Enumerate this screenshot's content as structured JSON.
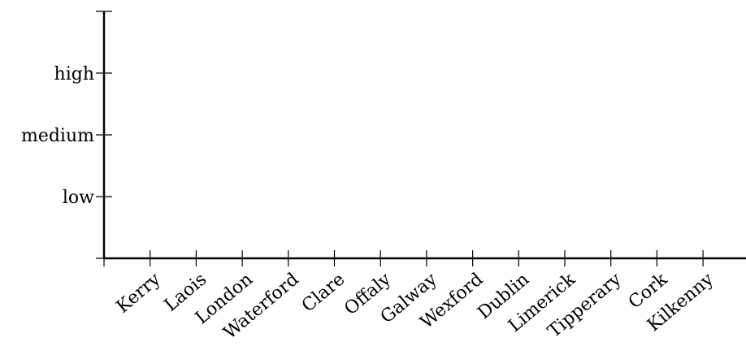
{
  "chart_data": {
    "type": "line",
    "title": "",
    "xlabel": "",
    "ylabel": "",
    "categories": [
      "Kerry",
      "Laois",
      "London",
      "Waterford",
      "Clare",
      "Offaly",
      "Galway",
      "Wexford",
      "Dublin",
      "Limerick",
      "Tipperary",
      "Cork",
      "Kilkenny"
    ],
    "y_categories": [
      "low",
      "medium",
      "high"
    ],
    "series": [],
    "grid": false,
    "legend": "none"
  }
}
